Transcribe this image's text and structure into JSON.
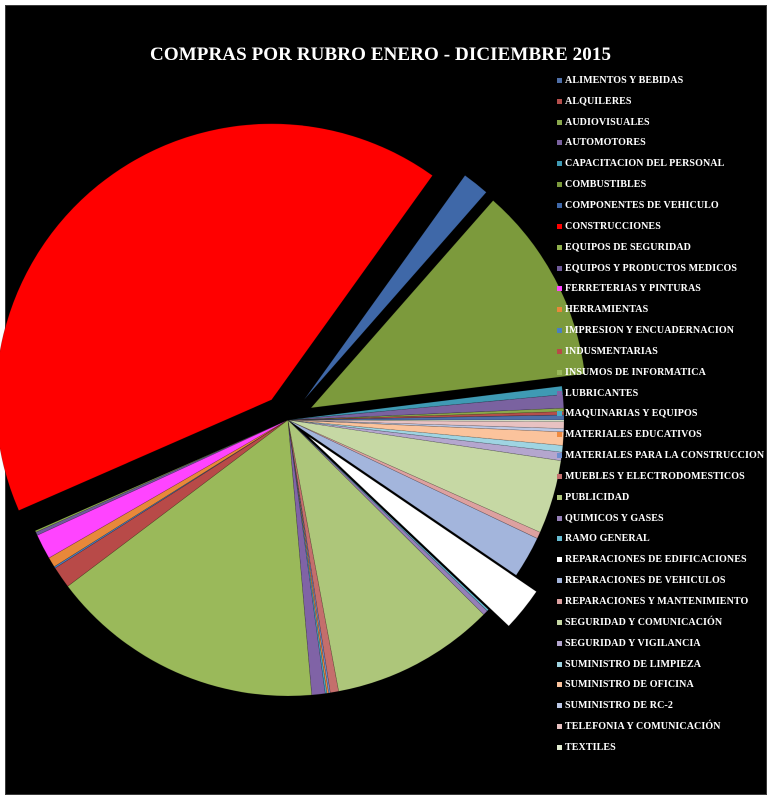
{
  "chart_data": {
    "type": "pie",
    "title": "COMPRAS POR RUBRO ENERO - DICIEMBRE 2015",
    "legend_position": "right",
    "slices": [
      {
        "label": "ALIMENTOS Y BEBIDAS",
        "value": 0.3,
        "color": "#4f6fa8",
        "exploded": false
      },
      {
        "label": "ALQUILERES",
        "value": 0.2,
        "color": "#b54f4c",
        "exploded": false
      },
      {
        "label": "AUDIOVISUALES",
        "value": 0.2,
        "color": "#8aa84c",
        "exploded": false
      },
      {
        "label": "AUTOMOTORES",
        "value": 0.8,
        "color": "#7a62a0",
        "exploded": false
      },
      {
        "label": "CAPACITACION DEL PERSONAL",
        "value": 0.5,
        "color": "#3f9ab4",
        "exploded": false
      },
      {
        "label": "COMBUSTIBLES",
        "value": 11.8,
        "color": "#7c9a3c",
        "exploded": true
      },
      {
        "label": "COMPONENTES DE VEHICULO",
        "value": 1.6,
        "color": "#3f68a8",
        "exploded": true
      },
      {
        "label": "CONSTRUCCIONES",
        "value": 42.3,
        "color": "#ff0000",
        "exploded": true
      },
      {
        "label": "EQUIPOS DE SEGURIDAD",
        "value": 0.1,
        "color": "#8fb04c",
        "exploded": false
      },
      {
        "label": "EQUIPOS Y PRODUCTOS MEDICOS",
        "value": 0.2,
        "color": "#6f5a9a",
        "exploded": false
      },
      {
        "label": "FERRETERIAS Y PINTURAS",
        "value": 1.5,
        "color": "#ff44ff",
        "exploded": false
      },
      {
        "label": "HERRAMIENTAS",
        "value": 0.6,
        "color": "#e8883a",
        "exploded": false
      },
      {
        "label": "IMPRESION Y ENCUADERNACION",
        "value": 0.1,
        "color": "#4a7fc0",
        "exploded": false
      },
      {
        "label": "INDUSMENTARIAS",
        "value": 1.3,
        "color": "#b84a48",
        "exploded": false
      },
      {
        "label": "INSUMOS DE INFORMATICA",
        "value": 16.4,
        "color": "#9ab95a",
        "exploded": false
      },
      {
        "label": "LUBRICANTES",
        "value": 0.8,
        "color": "#8063a6",
        "exploded": false
      },
      {
        "label": "MAQUINARIAS Y EQUIPOS",
        "value": 0.1,
        "color": "#48aac4",
        "exploded": false
      },
      {
        "label": "MATERIALES EDUCATIVOS",
        "value": 0.1,
        "color": "#f08a40",
        "exploded": false
      },
      {
        "label": "MATERIALES PARA LA CONSTRUCCION",
        "value": 0.1,
        "color": "#6e8fd0",
        "exploded": false
      },
      {
        "label": "MUEBLES Y ELECTRODOMESTICOS",
        "value": 0.5,
        "color": "#c46e6c",
        "exploded": false
      },
      {
        "label": "PUBLICIDAD",
        "value": 9.8,
        "color": "#adc67a",
        "exploded": false
      },
      {
        "label": "QUIMICOS Y GASES",
        "value": 0.3,
        "color": "#957fb8",
        "exploded": false
      },
      {
        "label": "RAMO GENERAL",
        "value": 0.1,
        "color": "#66bcd2",
        "exploded": false
      },
      {
        "label": "REPARACIONES DE EDIFICACIONES",
        "value": 2.6,
        "color": "#ffffff",
        "exploded": true
      },
      {
        "label": "REPARACIONES DE VEHICULOS",
        "value": 2.5,
        "color": "#a3b5dc",
        "exploded": false
      },
      {
        "label": "REPARACIONES Y MANTENIMIENTO",
        "value": 0.4,
        "color": "#dda1a0",
        "exploded": false
      },
      {
        "label": "SEGURIDAD Y COMUNICACIÓN",
        "value": 4.4,
        "color": "#c6d8a4",
        "exploded": false
      },
      {
        "label": "SEGURIDAD Y VIGILANCIA",
        "value": 0.5,
        "color": "#b4a6ce",
        "exploded": false
      },
      {
        "label": "SUMINISTRO DE LIMPIEZA",
        "value": 0.4,
        "color": "#9fd4e2",
        "exploded": false
      },
      {
        "label": "SUMINISTRO DE OFICINA",
        "value": 0.8,
        "color": "#fbc39c",
        "exploded": false
      },
      {
        "label": "SUMINISTRO DE RC-2",
        "value": 0.2,
        "color": "#bcc8e6",
        "exploded": false
      },
      {
        "label": "TELEFONIA Y COMUNICACIÓN",
        "value": 0.4,
        "color": "#e8c2c2",
        "exploded": false
      },
      {
        "label": "TEXTILES",
        "value": 0.1,
        "color": "#e2ecd2",
        "exploded": false
      }
    ]
  }
}
